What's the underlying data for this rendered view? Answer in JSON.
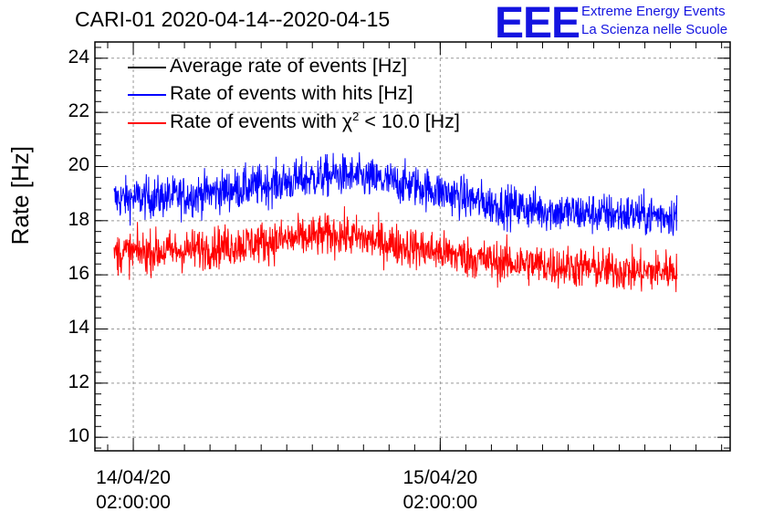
{
  "title": "CARI-01 2020-04-14--2020-04-15",
  "logo": {
    "mark": "EEE",
    "line1": "Extreme Energy Events",
    "line2": "La Scienza nelle Scuole"
  },
  "chart_data": {
    "type": "line",
    "ylabel": "Rate [Hz]",
    "xlabel": "",
    "ylim": [
      9.5,
      24.6
    ],
    "yticks": [
      "10",
      "12",
      "14",
      "16",
      "18",
      "20",
      "22",
      "24"
    ],
    "x_range": [
      "2020-04-13 23:00",
      "2020-04-16 00:40"
    ],
    "x_ticks": [
      {
        "date": "14/04/20",
        "time": "02:00:00"
      },
      {
        "date": "15/04/20",
        "time": "02:00:00"
      }
    ],
    "grid": true,
    "legend_position": "top-left",
    "series": [
      {
        "name": "Average rate of events [Hz]",
        "color": "#000000",
        "values": []
      },
      {
        "name": "Rate of events with hits [Hz]",
        "color": "#0000ff",
        "x": [
          "2020-04-14 00:30",
          "2020-04-14 06:00",
          "2020-04-14 12:00",
          "2020-04-14 18:00",
          "2020-04-15 00:00",
          "2020-04-15 06:00",
          "2020-04-15 12:00",
          "2020-04-15 18:00",
          "2020-04-15 20:30"
        ],
        "values": [
          18.8,
          18.9,
          19.3,
          19.7,
          19.3,
          18.6,
          18.3,
          18.2,
          18.2
        ]
      },
      {
        "name_prefix": "Rate of events with ",
        "name_symbol": "χ",
        "name_sup": "2",
        "name_suffix": " < 10.0 [Hz]",
        "color": "#ff0000",
        "x": [
          "2020-04-14 00:30",
          "2020-04-14 06:00",
          "2020-04-14 12:00",
          "2020-04-14 18:00",
          "2020-04-15 00:00",
          "2020-04-15 06:00",
          "2020-04-15 12:00",
          "2020-04-15 18:00",
          "2020-04-15 20:30"
        ],
        "values": [
          16.8,
          16.9,
          17.2,
          17.5,
          17.0,
          16.5,
          16.3,
          16.1,
          16.2
        ]
      }
    ]
  }
}
